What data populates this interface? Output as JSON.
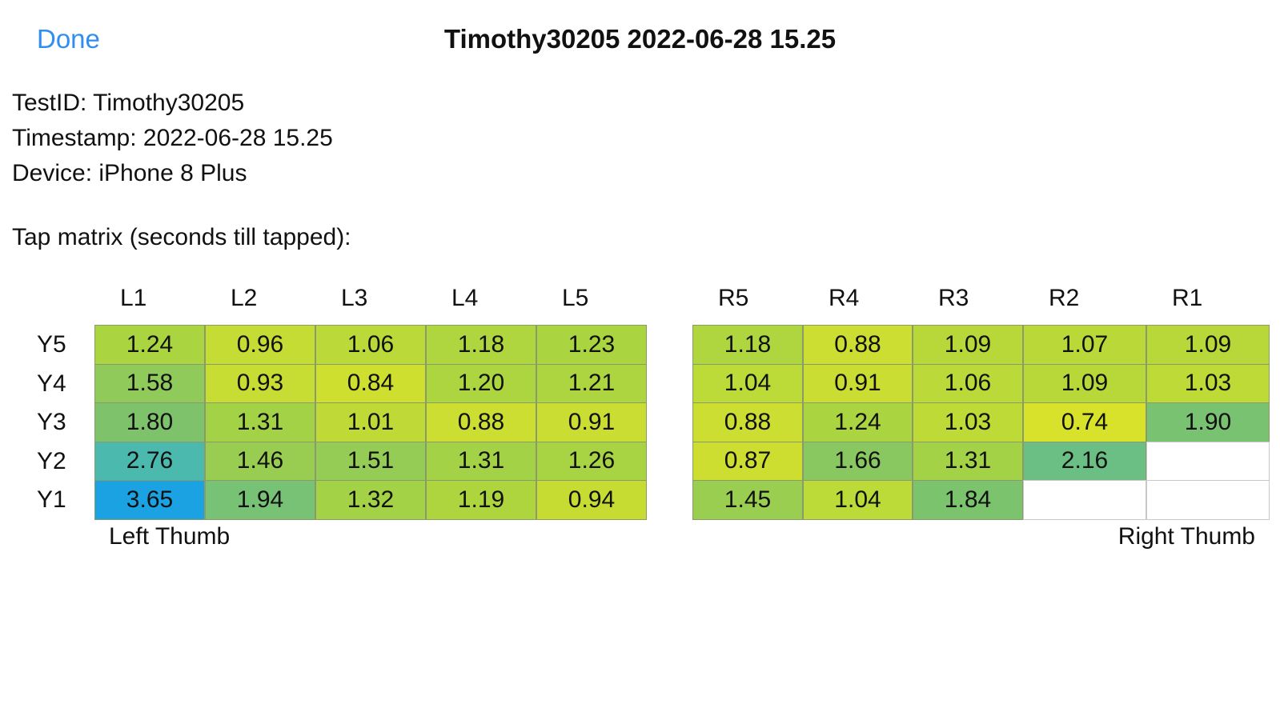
{
  "nav": {
    "done": "Done",
    "title": "Timothy30205 2022-06-28 15.25"
  },
  "info": {
    "lines": [
      "TestID: Timothy30205",
      "Timestamp: 2022-06-28 15.25",
      "Device: iPhone 8 Plus"
    ],
    "matrix_label": "Tap matrix (seconds till tapped):"
  },
  "row_labels": [
    "Y5",
    "Y4",
    "Y3",
    "Y2",
    "Y1"
  ],
  "left": {
    "columns": [
      "L1",
      "L2",
      "L3",
      "L4",
      "L5"
    ],
    "cells": [
      [
        "1.24",
        "0.96",
        "1.06",
        "1.18",
        "1.23"
      ],
      [
        "1.58",
        "0.93",
        "0.84",
        "1.20",
        "1.21"
      ],
      [
        "1.80",
        "1.31",
        "1.01",
        "0.88",
        "0.91"
      ],
      [
        "2.76",
        "1.46",
        "1.51",
        "1.31",
        "1.26"
      ],
      [
        "3.65",
        "1.94",
        "1.32",
        "1.19",
        "0.94"
      ]
    ],
    "caption": "Left Thumb"
  },
  "right": {
    "columns": [
      "R5",
      "R4",
      "R3",
      "R2",
      "R1"
    ],
    "cells": [
      [
        "1.18",
        "0.88",
        "1.09",
        "1.07",
        "1.09"
      ],
      [
        "1.04",
        "0.91",
        "1.06",
        "1.09",
        "1.03"
      ],
      [
        "0.88",
        "1.24",
        "1.03",
        "0.74",
        "1.90"
      ],
      [
        "0.87",
        "1.66",
        "1.31",
        "2.16",
        null
      ],
      [
        "1.45",
        "1.04",
        "1.84",
        null,
        null
      ]
    ],
    "caption": "Right Thumb"
  }
}
